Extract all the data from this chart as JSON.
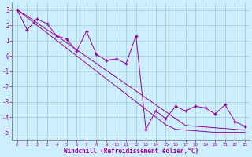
{
  "x": [
    0,
    1,
    2,
    3,
    4,
    5,
    6,
    7,
    8,
    9,
    10,
    11,
    12,
    13,
    14,
    15,
    16,
    17,
    18,
    19,
    20,
    21,
    22,
    23
  ],
  "y_line": [
    3,
    1.7,
    2.4,
    2.1,
    1.3,
    1.1,
    0.3,
    1.6,
    0.1,
    -0.3,
    -0.2,
    -0.5,
    1.3,
    -4.8,
    -3.6,
    -4.1,
    -3.3,
    -3.6,
    -3.3,
    -3.4,
    -3.8,
    -3.2,
    -4.3,
    -4.6
  ],
  "y_trend1": [
    3.0,
    2.6,
    2.15,
    1.7,
    1.3,
    0.85,
    0.4,
    -0.05,
    -0.5,
    -0.95,
    -1.4,
    -1.85,
    -2.3,
    -2.75,
    -3.2,
    -3.65,
    -4.1,
    -4.55,
    -4.6,
    -4.65,
    -4.7,
    -4.75,
    -4.8,
    -4.85
  ],
  "y_trend2": [
    3.0,
    2.5,
    2.0,
    1.5,
    1.0,
    0.5,
    0.0,
    -0.5,
    -1.0,
    -1.5,
    -2.0,
    -2.5,
    -3.0,
    -3.5,
    -4.0,
    -4.5,
    -4.8,
    -4.85,
    -4.9,
    -4.95,
    -5.0,
    -5.0,
    -5.0,
    -5.0
  ],
  "color": "#990099",
  "bg_color": "#cceeff",
  "grid_color": "#99cccc",
  "xlabel": "Windchill (Refroidissement éolien,°C)",
  "xlim": [
    -0.5,
    23.5
  ],
  "ylim": [
    -5.5,
    3.5
  ],
  "yticks": [
    -5,
    -4,
    -3,
    -2,
    -1,
    0,
    1,
    2,
    3
  ],
  "xticks": [
    0,
    1,
    2,
    3,
    4,
    5,
    6,
    7,
    8,
    9,
    10,
    11,
    12,
    13,
    14,
    15,
    16,
    17,
    18,
    19,
    20,
    21,
    22,
    23
  ]
}
